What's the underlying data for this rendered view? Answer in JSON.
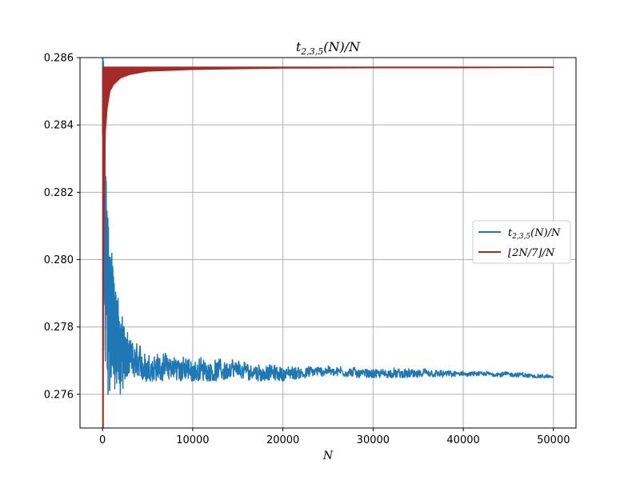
{
  "chart_data": {
    "type": "line",
    "title": "t_{2,3,5}(N)/N",
    "xlabel": "N",
    "ylabel": "",
    "xlim": [
      -2500,
      52500
    ],
    "ylim": [
      0.275,
      0.286
    ],
    "xticks": [
      0,
      10000,
      20000,
      30000,
      40000,
      50000
    ],
    "xtick_labels": [
      "0",
      "10000",
      "20000",
      "30000",
      "40000",
      "50000"
    ],
    "yticks": [
      0.276,
      0.278,
      0.28,
      0.282,
      0.284,
      0.286
    ],
    "ytick_labels": [
      "0.276",
      "0.278",
      "0.280",
      "0.282",
      "0.284",
      "0.286"
    ],
    "grid": true,
    "legend_position": "center-right",
    "series": [
      {
        "name": "t_{2,3,5}(N)/N",
        "color": "#1f77b4",
        "style": "noisy-line",
        "x": [
          50,
          200,
          500,
          800,
          1200,
          2000,
          3000,
          5000,
          7500,
          10000,
          15000,
          20000,
          25000,
          30000,
          35000,
          40000,
          45000,
          50000
        ],
        "y": [
          0.286,
          0.281,
          0.279,
          0.2785,
          0.278,
          0.2773,
          0.277,
          0.2768,
          0.2768,
          0.2767,
          0.2767,
          0.2766,
          0.2767,
          0.2766,
          0.2766,
          0.2766,
          0.2766,
          0.2765
        ],
        "band_lower": [
          0.275,
          0.275,
          0.275,
          0.2752,
          0.2755,
          0.2759,
          0.2762,
          0.2764,
          0.2764,
          0.2764,
          0.2764,
          0.2764,
          0.2765,
          0.2765,
          0.2765,
          0.2765,
          0.2765,
          0.2765
        ],
        "band_upper": [
          0.286,
          0.2855,
          0.2835,
          0.2815,
          0.2795,
          0.2785,
          0.2778,
          0.2774,
          0.2773,
          0.2772,
          0.2771,
          0.2769,
          0.2769,
          0.2768,
          0.2768,
          0.2767,
          0.2767,
          0.2766
        ]
      },
      {
        "name": "⌊2N/7⌋/N",
        "color": "#a52a2a",
        "style": "band",
        "x": [
          50,
          100,
          200,
          300,
          500,
          800,
          1200,
          2000,
          3000,
          5000,
          10000,
          20000,
          30000,
          40000,
          50000
        ],
        "upper": [
          0.285714,
          0.285714,
          0.285714,
          0.285714,
          0.285714,
          0.285714,
          0.285714,
          0.285714,
          0.285714,
          0.285714,
          0.285714,
          0.285714,
          0.285714,
          0.285714,
          0.285714
        ],
        "lower": [
          0.275,
          0.28,
          0.2829,
          0.2838,
          0.2845,
          0.285,
          0.2852,
          0.2854,
          0.2855,
          0.2856,
          0.28565,
          0.28569,
          0.2857,
          0.2857,
          0.28571
        ]
      }
    ]
  }
}
